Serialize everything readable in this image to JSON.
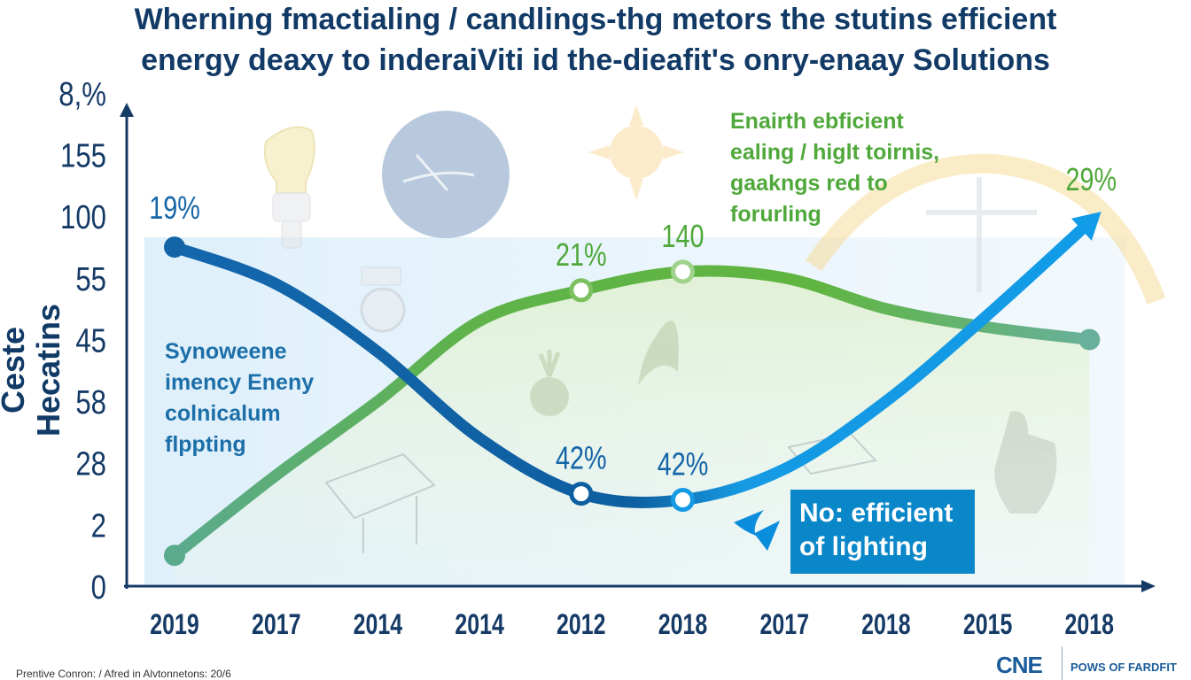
{
  "title_line1": "Wherning fmactialing / candlings-thg metors the stutins efficient",
  "title_line2": "energy deaxy to inderaiViti id the-dieafit's onry-enaay Solutions",
  "chart_data": {
    "type": "line",
    "title": "Wherning fmactialing / candlings-thg metors the stutins efficient energy deaxy to inderaiViti id the-dieafit's onry-enaay Solutions",
    "xlabel": "",
    "ylabel": "Ceste Hecatins",
    "categories": [
      "2019",
      "2017",
      "2014",
      "2014",
      "2012",
      "2018",
      "2017",
      "2018",
      "2015",
      "2018"
    ],
    "y_ticks": [
      "0",
      "2",
      "28",
      "58",
      "45",
      "55",
      "100",
      "155",
      "8,%"
    ],
    "ylim": [
      0,
      8
    ],
    "grid": false,
    "series": [
      {
        "name": "Synoweene imency Eneny colnicalum flppting",
        "color": "#1465a8",
        "values": [
          5.5,
          4.9,
          3.8,
          2.4,
          1.5,
          1.4,
          1.9,
          3.0,
          4.4,
          5.9
        ],
        "labels": [
          {
            "index": 0,
            "text": "19%"
          },
          {
            "index": 4,
            "text": "42%"
          },
          {
            "index": 5,
            "text": "42%"
          }
        ]
      },
      {
        "name": "Enairth ebficient ealing / higlt toirnis",
        "color": "#5cb046",
        "values": [
          0.5,
          1.8,
          3.0,
          4.3,
          4.8,
          5.1,
          5.0,
          4.5,
          4.2,
          4.0
        ],
        "labels": [
          {
            "index": 4,
            "text": "21%"
          },
          {
            "index": 5,
            "text": "140"
          },
          {
            "index": 9,
            "text": "29%"
          }
        ]
      }
    ],
    "annotations": [
      "Synoweene imency Eneny colnicalum flppting",
      "Enairth ebficient ealing / higlt toirnis, gaakngs red to forurling",
      "No: efficient of lighting"
    ]
  },
  "annotation_left": [
    "Synoweene",
    "imency Eneny",
    "colnicalum",
    "flppting"
  ],
  "annotation_right": [
    "Enairth ebficient",
    "ealing / higlt toirnis,",
    "gaakngs red to",
    "forurling"
  ],
  "callout": [
    "No: efficient",
    "of lighting"
  ],
  "footer": {
    "source": "Prentive Conron: / Afred in Alvtonnetons: 20/6",
    "logo": "CNE",
    "brand": "POWS OF FARDFIT"
  },
  "colors": {
    "title": "#123a66",
    "blue_line": "#1465a8",
    "bright_blue": "#0a8ddc",
    "green_line": "#5cb046",
    "teal_line": "#5aaa8e",
    "callout_bg": "#0a87c8"
  }
}
